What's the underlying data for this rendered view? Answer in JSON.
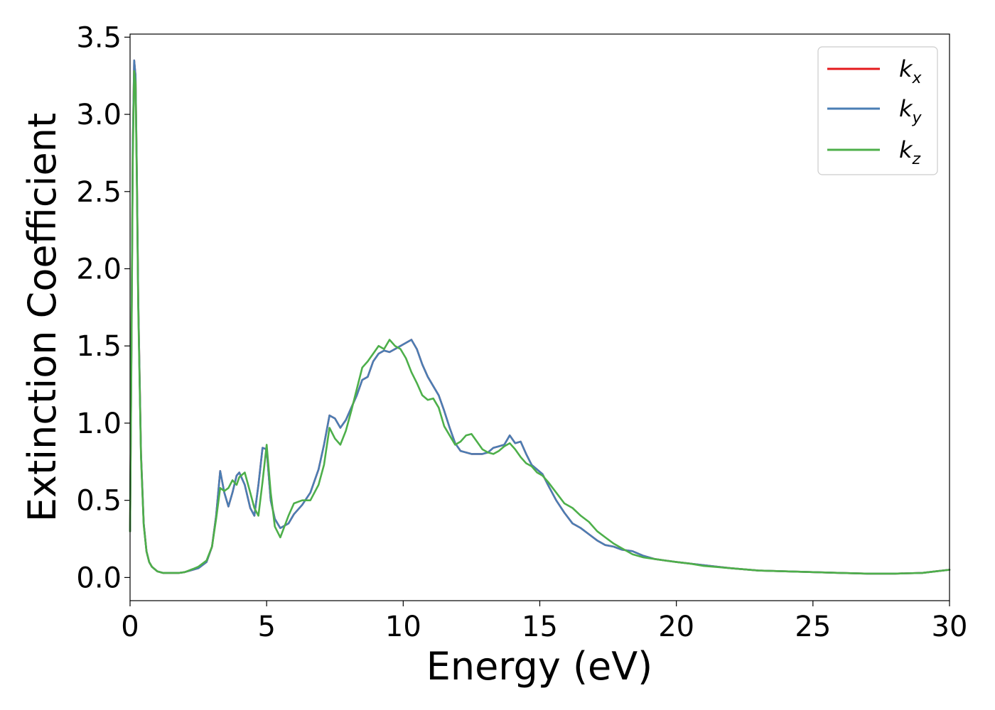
{
  "chart_data": {
    "type": "line",
    "title": "",
    "xlabel": "Energy (eV)",
    "ylabel": "Extinction Coefficient",
    "xlim": [
      0,
      30
    ],
    "ylim": [
      -0.15,
      3.52
    ],
    "xticks": [
      0,
      5,
      10,
      15,
      20,
      25,
      30
    ],
    "xtick_labels": [
      "0",
      "5",
      "10",
      "15",
      "20",
      "25",
      "30"
    ],
    "yticks": [
      0.0,
      0.5,
      1.0,
      1.5,
      2.0,
      2.5,
      3.0,
      3.5
    ],
    "ytick_labels": [
      "0.0",
      "0.5",
      "1.0",
      "1.5",
      "2.0",
      "2.5",
      "3.0",
      "3.5"
    ],
    "grid": false,
    "legend_position": "top-right",
    "series": [
      {
        "name": "k_x",
        "legend_base": "k",
        "legend_sub": "x",
        "color": "#e41a1c",
        "x": [
          0,
          0.05,
          0.1,
          0.15,
          0.2,
          0.25,
          0.3,
          0.4,
          0.5,
          0.6,
          0.7,
          0.8,
          1.0,
          1.2,
          1.5,
          1.8,
          2.0,
          2.3,
          2.5,
          2.8,
          3.0,
          3.15,
          3.3,
          3.45,
          3.6,
          3.75,
          3.9,
          4.0,
          4.2,
          4.4,
          4.55,
          4.7,
          4.85,
          5.0,
          5.15,
          5.3,
          5.5,
          5.8,
          6.0,
          6.3,
          6.6,
          6.9,
          7.1,
          7.3,
          7.5,
          7.7,
          7.9,
          8.1,
          8.3,
          8.5,
          8.7,
          8.9,
          9.1,
          9.3,
          9.5,
          9.7,
          9.9,
          10.1,
          10.3,
          10.5,
          10.7,
          10.9,
          11.1,
          11.3,
          11.5,
          11.7,
          11.9,
          12.1,
          12.3,
          12.5,
          12.7,
          12.9,
          13.1,
          13.3,
          13.5,
          13.7,
          13.9,
          14.1,
          14.3,
          14.5,
          14.7,
          14.9,
          15.1,
          15.3,
          15.6,
          15.9,
          16.2,
          16.5,
          16.8,
          17.1,
          17.4,
          17.7,
          18.0,
          18.4,
          18.8,
          19.2,
          19.6,
          20.0,
          20.5,
          21.0,
          22.0,
          23.0,
          24.0,
          25.0,
          26.0,
          27.0,
          27.5,
          28.0,
          29.0,
          29.5,
          30.0
        ],
        "y": [
          0.3,
          1.5,
          2.8,
          3.35,
          3.25,
          2.6,
          1.8,
          0.8,
          0.35,
          0.17,
          0.1,
          0.07,
          0.04,
          0.03,
          0.03,
          0.03,
          0.035,
          0.05,
          0.06,
          0.1,
          0.2,
          0.4,
          0.69,
          0.55,
          0.46,
          0.55,
          0.66,
          0.68,
          0.6,
          0.45,
          0.4,
          0.6,
          0.84,
          0.83,
          0.5,
          0.38,
          0.32,
          0.35,
          0.41,
          0.47,
          0.55,
          0.7,
          0.86,
          1.05,
          1.03,
          0.97,
          1.02,
          1.1,
          1.18,
          1.28,
          1.3,
          1.4,
          1.45,
          1.47,
          1.46,
          1.48,
          1.5,
          1.52,
          1.54,
          1.48,
          1.38,
          1.3,
          1.24,
          1.18,
          1.08,
          0.97,
          0.87,
          0.82,
          0.81,
          0.8,
          0.8,
          0.8,
          0.81,
          0.84,
          0.85,
          0.86,
          0.92,
          0.87,
          0.88,
          0.8,
          0.73,
          0.7,
          0.67,
          0.6,
          0.5,
          0.42,
          0.35,
          0.32,
          0.28,
          0.24,
          0.21,
          0.2,
          0.18,
          0.17,
          0.14,
          0.12,
          0.11,
          0.1,
          0.09,
          0.08,
          0.06,
          0.045,
          0.04,
          0.035,
          0.03,
          0.025,
          0.025,
          0.025,
          0.03,
          0.04,
          0.05
        ]
      },
      {
        "name": "k_y",
        "legend_base": "k",
        "legend_sub": "y",
        "color": "#4a7eb4",
        "x": [
          0,
          0.05,
          0.1,
          0.15,
          0.2,
          0.25,
          0.3,
          0.4,
          0.5,
          0.6,
          0.7,
          0.8,
          1.0,
          1.2,
          1.5,
          1.8,
          2.0,
          2.3,
          2.5,
          2.8,
          3.0,
          3.15,
          3.3,
          3.45,
          3.6,
          3.75,
          3.9,
          4.0,
          4.2,
          4.4,
          4.55,
          4.7,
          4.85,
          5.0,
          5.15,
          5.3,
          5.5,
          5.8,
          6.0,
          6.3,
          6.6,
          6.9,
          7.1,
          7.3,
          7.5,
          7.7,
          7.9,
          8.1,
          8.3,
          8.5,
          8.7,
          8.9,
          9.1,
          9.3,
          9.5,
          9.7,
          9.9,
          10.1,
          10.3,
          10.5,
          10.7,
          10.9,
          11.1,
          11.3,
          11.5,
          11.7,
          11.9,
          12.1,
          12.3,
          12.5,
          12.7,
          12.9,
          13.1,
          13.3,
          13.5,
          13.7,
          13.9,
          14.1,
          14.3,
          14.5,
          14.7,
          14.9,
          15.1,
          15.3,
          15.6,
          15.9,
          16.2,
          16.5,
          16.8,
          17.1,
          17.4,
          17.7,
          18.0,
          18.4,
          18.8,
          19.2,
          19.6,
          20.0,
          20.5,
          21.0,
          22.0,
          23.0,
          24.0,
          25.0,
          26.0,
          27.0,
          27.5,
          28.0,
          29.0,
          29.5,
          30.0
        ],
        "y": [
          0.3,
          1.5,
          2.8,
          3.35,
          3.25,
          2.6,
          1.8,
          0.8,
          0.35,
          0.17,
          0.1,
          0.07,
          0.04,
          0.03,
          0.03,
          0.03,
          0.035,
          0.05,
          0.06,
          0.1,
          0.2,
          0.4,
          0.69,
          0.55,
          0.46,
          0.55,
          0.66,
          0.68,
          0.6,
          0.45,
          0.4,
          0.6,
          0.84,
          0.83,
          0.5,
          0.38,
          0.32,
          0.35,
          0.41,
          0.47,
          0.55,
          0.7,
          0.86,
          1.05,
          1.03,
          0.97,
          1.02,
          1.1,
          1.18,
          1.28,
          1.3,
          1.4,
          1.45,
          1.47,
          1.46,
          1.48,
          1.5,
          1.52,
          1.54,
          1.48,
          1.38,
          1.3,
          1.24,
          1.18,
          1.08,
          0.97,
          0.87,
          0.82,
          0.81,
          0.8,
          0.8,
          0.8,
          0.81,
          0.84,
          0.85,
          0.86,
          0.92,
          0.87,
          0.88,
          0.8,
          0.73,
          0.7,
          0.67,
          0.6,
          0.5,
          0.42,
          0.35,
          0.32,
          0.28,
          0.24,
          0.21,
          0.2,
          0.18,
          0.17,
          0.14,
          0.12,
          0.11,
          0.1,
          0.09,
          0.08,
          0.06,
          0.045,
          0.04,
          0.035,
          0.03,
          0.025,
          0.025,
          0.025,
          0.03,
          0.04,
          0.05
        ]
      },
      {
        "name": "k_z",
        "legend_base": "k",
        "legend_sub": "z",
        "color": "#4daf4a",
        "x": [
          0,
          0.05,
          0.1,
          0.15,
          0.2,
          0.25,
          0.3,
          0.4,
          0.5,
          0.6,
          0.7,
          0.8,
          1.0,
          1.2,
          1.5,
          1.8,
          2.0,
          2.3,
          2.5,
          2.8,
          3.0,
          3.15,
          3.3,
          3.45,
          3.6,
          3.75,
          3.9,
          4.0,
          4.2,
          4.4,
          4.55,
          4.7,
          4.85,
          5.0,
          5.15,
          5.3,
          5.5,
          5.8,
          6.0,
          6.3,
          6.6,
          6.9,
          7.1,
          7.3,
          7.5,
          7.7,
          7.9,
          8.1,
          8.3,
          8.5,
          8.7,
          8.9,
          9.1,
          9.3,
          9.5,
          9.7,
          9.9,
          10.1,
          10.3,
          10.5,
          10.7,
          10.9,
          11.1,
          11.3,
          11.5,
          11.7,
          11.9,
          12.1,
          12.3,
          12.5,
          12.7,
          12.9,
          13.1,
          13.3,
          13.5,
          13.7,
          13.9,
          14.1,
          14.3,
          14.5,
          14.7,
          14.9,
          15.1,
          15.3,
          15.6,
          15.9,
          16.2,
          16.5,
          16.8,
          17.1,
          17.4,
          17.7,
          18.0,
          18.4,
          18.8,
          19.2,
          19.6,
          20.0,
          20.5,
          21.0,
          22.0,
          23.0,
          24.0,
          25.0,
          26.0,
          27.0,
          27.5,
          28.0,
          29.0,
          29.5,
          30.0
        ],
        "y": [
          0.3,
          1.4,
          2.7,
          3.28,
          3.2,
          2.55,
          1.75,
          0.78,
          0.34,
          0.17,
          0.1,
          0.07,
          0.04,
          0.03,
          0.03,
          0.03,
          0.035,
          0.055,
          0.07,
          0.11,
          0.2,
          0.38,
          0.58,
          0.56,
          0.58,
          0.63,
          0.6,
          0.65,
          0.68,
          0.55,
          0.45,
          0.4,
          0.62,
          0.86,
          0.55,
          0.33,
          0.26,
          0.4,
          0.48,
          0.5,
          0.5,
          0.6,
          0.73,
          0.97,
          0.9,
          0.86,
          0.95,
          1.08,
          1.22,
          1.36,
          1.4,
          1.45,
          1.5,
          1.48,
          1.54,
          1.5,
          1.48,
          1.42,
          1.33,
          1.26,
          1.18,
          1.15,
          1.16,
          1.1,
          0.98,
          0.92,
          0.86,
          0.88,
          0.92,
          0.93,
          0.88,
          0.83,
          0.81,
          0.8,
          0.82,
          0.85,
          0.87,
          0.83,
          0.78,
          0.74,
          0.72,
          0.68,
          0.66,
          0.62,
          0.55,
          0.48,
          0.45,
          0.4,
          0.36,
          0.3,
          0.26,
          0.22,
          0.19,
          0.15,
          0.13,
          0.12,
          0.11,
          0.1,
          0.09,
          0.075,
          0.06,
          0.045,
          0.04,
          0.035,
          0.03,
          0.025,
          0.025,
          0.025,
          0.03,
          0.04,
          0.05
        ]
      }
    ]
  }
}
